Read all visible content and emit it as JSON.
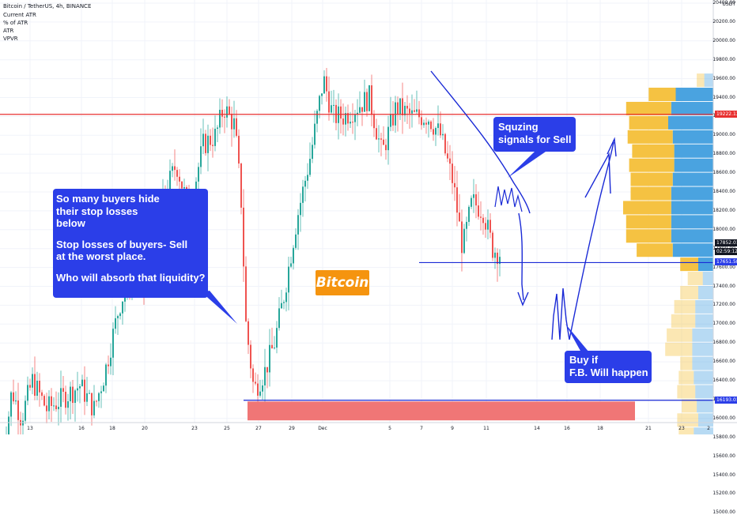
{
  "header": {
    "symbol": "Bitcoin / TetherUS, 4h, BINANCE",
    "indicators": [
      "Current ATR",
      "% of ATR",
      "ATR",
      "VPVR"
    ]
  },
  "price_scale": {
    "currency": "USDT",
    "ticks": [
      "20400.00",
      "20200.00",
      "20000.00",
      "19800.00",
      "19600.00",
      "19400.00",
      "19200.00",
      "19000.00",
      "18800.00",
      "18600.00",
      "18400.00",
      "18200.00",
      "18000.00",
      "17800.00",
      "17600.00",
      "17400.00",
      "17200.00",
      "17000.00",
      "16800.00",
      "16600.00",
      "16400.00",
      "16200.00",
      "16000.00",
      "15800.00",
      "15600.00",
      "15400.00",
      "15200.00",
      "15000.00"
    ],
    "tags": [
      {
        "label": "19222.13",
        "color": "#e83030",
        "price": 19222.13
      },
      {
        "label": "17852.01",
        "color": "#131722",
        "price": 17852.01
      },
      {
        "label": "02:59:12",
        "color": "#131722",
        "price": 17760
      },
      {
        "label": "17651.58",
        "color": "#2b3ee8",
        "price": 17651.58
      },
      {
        "label": "16193.01",
        "color": "#2b3ee8",
        "price": 16193.01
      }
    ]
  },
  "time_axis": {
    "labels": [
      "13",
      "16",
      "18",
      "20",
      "23",
      "25",
      "27",
      "29",
      "Dec",
      "5",
      "7",
      "9",
      "11",
      "14",
      "16",
      "18",
      "21",
      "23",
      "2"
    ]
  },
  "callouts": {
    "left": [
      "So many buyers hide",
      "their stop losses",
      "below",
      "",
      "Stop losses of buyers- Sell",
      "at the worst place.",
      "",
      "Who will absorb that liquidity?"
    ],
    "top_right": [
      "Squzing",
      "signals for Sell"
    ],
    "bottom_right": [
      "Buy if",
      "F.B. Will happen"
    ]
  },
  "badge": {
    "text": "Bitcoin",
    "color": "#f5940f"
  },
  "colors": {
    "up": "#26a69a",
    "down": "#ef5350",
    "resistance": "#e83030",
    "drawing": "#1a2ad6",
    "zone": "#f07676",
    "vp_up": "#f5c242",
    "vp_down": "#4aa3e0"
  },
  "chart_data": {
    "type": "candlestick",
    "ylim": [
      15000,
      20600
    ],
    "levels": [
      {
        "price": 19222.13,
        "color": "#e83030"
      },
      {
        "price": 17651.58,
        "color": "#1a2ad6"
      },
      {
        "price": 16193.01,
        "color": "#1a2ad6"
      }
    ],
    "zone": {
      "from": 15980,
      "to": 16180
    },
    "path_points": [
      [
        0,
        15400
      ],
      [
        14,
        16300
      ],
      [
        26,
        16000
      ],
      [
        40,
        16400
      ],
      [
        58,
        16100
      ],
      [
        76,
        16200
      ],
      [
        100,
        16350
      ],
      [
        118,
        16100
      ],
      [
        132,
        16500
      ],
      [
        150,
        17200
      ],
      [
        168,
        17600
      ],
      [
        182,
        17400
      ],
      [
        200,
        18200
      ],
      [
        222,
        18700
      ],
      [
        238,
        18200
      ],
      [
        256,
        18900
      ],
      [
        272,
        19000
      ],
      [
        282,
        19300
      ],
      [
        296,
        19100
      ],
      [
        304,
        18300
      ],
      [
        310,
        17000
      ],
      [
        320,
        16300
      ],
      [
        334,
        16500
      ],
      [
        346,
        16800
      ],
      [
        358,
        17300
      ],
      [
        374,
        18100
      ],
      [
        392,
        18800
      ],
      [
        408,
        19600
      ],
      [
        420,
        19200
      ],
      [
        434,
        19200
      ],
      [
        450,
        19300
      ],
      [
        466,
        19400
      ],
      [
        482,
        18800
      ],
      [
        500,
        19300
      ],
      [
        520,
        19200
      ],
      [
        540,
        19200
      ],
      [
        556,
        19000
      ],
      [
        572,
        18500
      ],
      [
        584,
        17800
      ],
      [
        596,
        18300
      ],
      [
        610,
        18200
      ],
      [
        622,
        17800
      ],
      [
        640,
        17700
      ]
    ],
    "volume_profile": [
      {
        "price": 19600,
        "up": 0.05,
        "down": 0.06,
        "faded": true
      },
      {
        "price": 19450,
        "up": 0.18,
        "down": 0.25,
        "faded": false
      },
      {
        "price": 19300,
        "up": 0.3,
        "down": 0.28,
        "faded": false
      },
      {
        "price": 19150,
        "up": 0.26,
        "down": 0.3,
        "faded": false
      },
      {
        "price": 19000,
        "up": 0.3,
        "down": 0.27,
        "faded": false
      },
      {
        "price": 18850,
        "up": 0.28,
        "down": 0.26,
        "faded": false
      },
      {
        "price": 18700,
        "up": 0.3,
        "down": 0.26,
        "faded": false
      },
      {
        "price": 18550,
        "up": 0.28,
        "down": 0.27,
        "faded": false
      },
      {
        "price": 18400,
        "up": 0.27,
        "down": 0.28,
        "faded": false
      },
      {
        "price": 18250,
        "up": 0.32,
        "down": 0.28,
        "faded": false
      },
      {
        "price": 18100,
        "up": 0.3,
        "down": 0.28,
        "faded": false
      },
      {
        "price": 17950,
        "up": 0.3,
        "down": 0.28,
        "faded": false
      },
      {
        "price": 17800,
        "up": 0.24,
        "down": 0.27,
        "faded": false
      },
      {
        "price": 17650,
        "up": 0.12,
        "down": 0.1,
        "faded": false
      },
      {
        "price": 17500,
        "up": 0.1,
        "down": 0.07,
        "faded": true
      },
      {
        "price": 17350,
        "up": 0.12,
        "down": 0.1,
        "faded": true
      },
      {
        "price": 17200,
        "up": 0.14,
        "down": 0.12,
        "faded": true
      },
      {
        "price": 17050,
        "up": 0.16,
        "down": 0.12,
        "faded": true
      },
      {
        "price": 16900,
        "up": 0.17,
        "down": 0.14,
        "faded": true
      },
      {
        "price": 16750,
        "up": 0.18,
        "down": 0.14,
        "faded": true
      },
      {
        "price": 16600,
        "up": 0.08,
        "down": 0.14,
        "faded": true
      },
      {
        "price": 16450,
        "up": 0.1,
        "down": 0.13,
        "faded": true
      },
      {
        "price": 16300,
        "up": 0.12,
        "down": 0.12,
        "faded": true
      },
      {
        "price": 16150,
        "up": 0.1,
        "down": 0.11,
        "faded": true
      },
      {
        "price": 16000,
        "up": 0.14,
        "down": 0.1,
        "faded": true
      },
      {
        "price": 15850,
        "up": 0.1,
        "down": 0.13,
        "faded": true
      },
      {
        "price": 15700,
        "up": 0.08,
        "down": 0.1,
        "faded": true
      },
      {
        "price": 15550,
        "up": 0.06,
        "down": 0.07,
        "faded": true
      },
      {
        "price": 15400,
        "up": 0.03,
        "down": 0.04,
        "faded": true
      },
      {
        "price": 15250,
        "up": 0.02,
        "down": 0.02,
        "faded": true
      }
    ]
  }
}
